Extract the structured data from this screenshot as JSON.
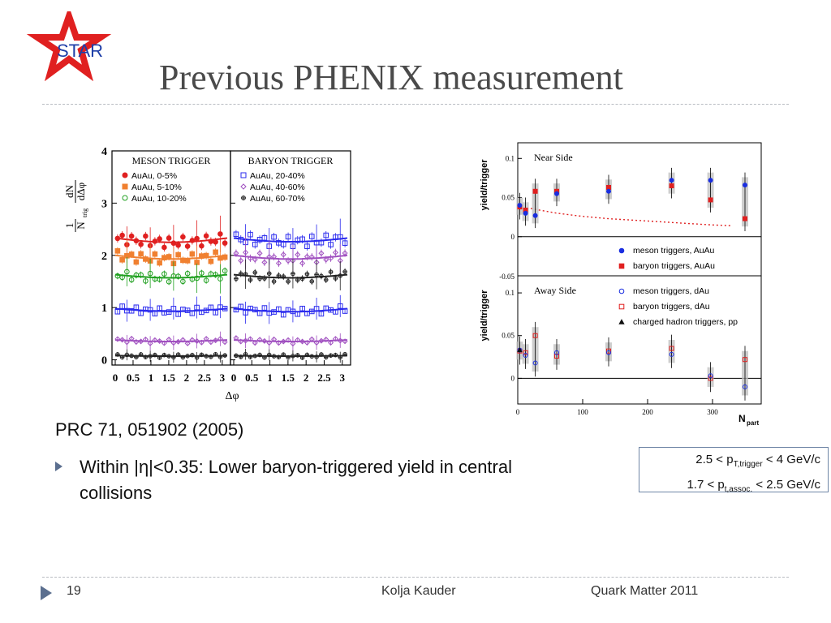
{
  "logo": {
    "text": "STAR",
    "star_color": "#e02020",
    "text_color": "#1f3fa8"
  },
  "title": "Previous PHENIX measurement",
  "reference": "PRC  71, 051902 (2005)",
  "bullet": "Within |η|<0.35: Lower baryon-triggered yield  in central collisions",
  "cuts": {
    "line1": {
      "prefix": "2.5 < p",
      "sub": "T,trigger",
      "suffix": " < 4 GeV/c"
    },
    "line2": {
      "prefix": "1.7 < p",
      "sub": "t,assoc.",
      "suffix": " < 2.5 GeV/c"
    }
  },
  "footer": {
    "page": "19",
    "author": "Kolja Kauder",
    "event": "Quark Matter 2011"
  },
  "chart_data": [
    {
      "type": "scatter",
      "ylabel_parts": {
        "num": "1",
        "den": "N",
        "den_sub": "trig",
        "frac_num": "dN",
        "frac_den": "dΔφ"
      },
      "xlabel": "Δφ",
      "ylim": [
        -0.1,
        4
      ],
      "yticks": [
        0,
        1,
        2,
        3,
        4
      ],
      "xticks": [
        0,
        0.5,
        1,
        1.5,
        2,
        2.5,
        3
      ],
      "xticklabels": [
        "0",
        "0.5",
        "1",
        "1.5",
        "2",
        "2.5",
        "3"
      ],
      "grid": false,
      "panels": [
        {
          "title": "MESON TRIGGER",
          "xlim": [
            0,
            3.14
          ],
          "series": [
            {
              "name": "AuAu,   0-5%",
              "marker": "filled-circle",
              "color": "#e02020",
              "center": 2.33,
              "amp": -0.08,
              "jitter": 0.1
            },
            {
              "name": "AuAu,   5-10%",
              "marker": "filled-square",
              "color": "#f08030",
              "center": 2.0,
              "amp": -0.07,
              "jitter": 0.09
            },
            {
              "name": "AuAu, 10-20%",
              "marker": "open-circle",
              "color": "#20a020",
              "center": 1.63,
              "amp": -0.06,
              "jitter": 0.08
            },
            {
              "name": "",
              "marker": "open-square",
              "color": "#2a2aee",
              "center": 0.98,
              "amp": -0.05,
              "jitter": 0.06
            },
            {
              "name": "",
              "marker": "open-diamond",
              "color": "#a050c0",
              "center": 0.38,
              "amp": -0.03,
              "jitter": 0.04
            },
            {
              "name": "",
              "marker": "open-cross",
              "color": "#222222",
              "center": 0.08,
              "amp": -0.01,
              "jitter": 0.03
            }
          ]
        },
        {
          "title": "BARYON TRIGGER",
          "xlim": [
            0,
            3.14
          ],
          "series": [
            {
              "name": "AuAu, 20-40%",
              "marker": "open-square",
              "color": "#2a2aee",
              "center": 2.33,
              "amp": -0.07,
              "jitter": 0.1
            },
            {
              "name": "AuAu, 40-60%",
              "marker": "open-diamond",
              "color": "#a050c0",
              "center": 2.0,
              "amp": -0.07,
              "jitter": 0.09
            },
            {
              "name": "AuAu, 60-70%",
              "marker": "open-cross",
              "color": "#222222",
              "center": 1.63,
              "amp": -0.06,
              "jitter": 0.08
            },
            {
              "name": "",
              "marker": "open-square",
              "color": "#2a2aee",
              "center": 0.98,
              "amp": -0.06,
              "jitter": 0.06
            },
            {
              "name": "",
              "marker": "open-diamond",
              "color": "#a050c0",
              "center": 0.38,
              "amp": -0.03,
              "jitter": 0.04
            },
            {
              "name": "",
              "marker": "open-cross",
              "color": "#222222",
              "center": 0.08,
              "amp": -0.01,
              "jitter": 0.03
            }
          ]
        }
      ]
    },
    {
      "type": "scatter",
      "xlabel": "N",
      "xlabel_sub": "part",
      "xlim": [
        0,
        375
      ],
      "xticks": [
        0,
        100,
        200,
        300
      ],
      "grid": false,
      "panels": [
        {
          "title": "Near Side",
          "ylabel": "yield/trigger",
          "ylim": [
            -0.05,
            0.12
          ],
          "yticks": [
            0,
            0.05,
            0.1
          ],
          "yticklabels": [
            "0",
            "0.05",
            "0.1"
          ],
          "baseline": 0,
          "dotted_curve": {
            "color": "#e02020",
            "x": [
              20,
              40,
              60,
              80,
              100,
              140,
              180,
              220,
              260,
              300,
              330
            ],
            "y": [
              0.036,
              0.033,
              0.03,
              0.028,
              0.026,
              0.023,
              0.021,
              0.019,
              0.017,
              0.015,
              0.014
            ]
          },
          "points": [
            {
              "x": 3,
              "meson": 0.04,
              "baryon": 0.038,
              "pp": 0.04
            },
            {
              "x": 12,
              "meson": 0.03,
              "baryon": 0.034
            },
            {
              "x": 27,
              "meson": 0.027,
              "baryon": 0.058
            },
            {
              "x": 60,
              "meson": 0.055,
              "baryon": 0.058
            },
            {
              "x": 140,
              "meson": 0.058,
              "baryon": 0.063
            },
            {
              "x": 237,
              "meson": 0.072,
              "baryon": 0.065
            },
            {
              "x": 297,
              "meson": 0.072,
              "baryon": 0.047
            },
            {
              "x": 350,
              "meson": 0.066,
              "baryon": 0.023
            }
          ],
          "legend": [
            {
              "label": "meson triggers, AuAu",
              "marker": "filled-circle",
              "color": "#1a2ee0"
            },
            {
              "label": "baryon triggers, AuAu",
              "marker": "filled-square",
              "color": "#e02020"
            }
          ]
        },
        {
          "title": "Away Side",
          "ylabel": "yield/trigger",
          "ylim": [
            -0.03,
            0.12
          ],
          "yticks": [
            0,
            0.05,
            0.1
          ],
          "yticklabels": [
            "0",
            "0.05",
            "0.1"
          ],
          "yextra_label": "-0.05",
          "baseline": 0,
          "points": [
            {
              "x": 3,
              "meson": 0.033,
              "baryon": 0.032,
              "pp": 0.033
            },
            {
              "x": 12,
              "meson": 0.027,
              "baryon": 0.03
            },
            {
              "x": 27,
              "meson": 0.018,
              "baryon": 0.05
            },
            {
              "x": 60,
              "meson": 0.03,
              "baryon": 0.026
            },
            {
              "x": 140,
              "meson": 0.03,
              "baryon": 0.032
            },
            {
              "x": 237,
              "meson": 0.028,
              "baryon": 0.035
            },
            {
              "x": 297,
              "meson": 0.003,
              "baryon": 0.0
            },
            {
              "x": 350,
              "meson": -0.01,
              "baryon": 0.022
            }
          ],
          "legend": [
            {
              "label": "meson triggers, dAu",
              "marker": "open-circle",
              "color": "#1a2ee0"
            },
            {
              "label": "baryon triggers, dAu",
              "marker": "open-square",
              "color": "#e02020"
            },
            {
              "label": "charged hadron triggers, pp",
              "marker": "filled-triangle",
              "color": "#111111"
            }
          ]
        }
      ]
    }
  ]
}
